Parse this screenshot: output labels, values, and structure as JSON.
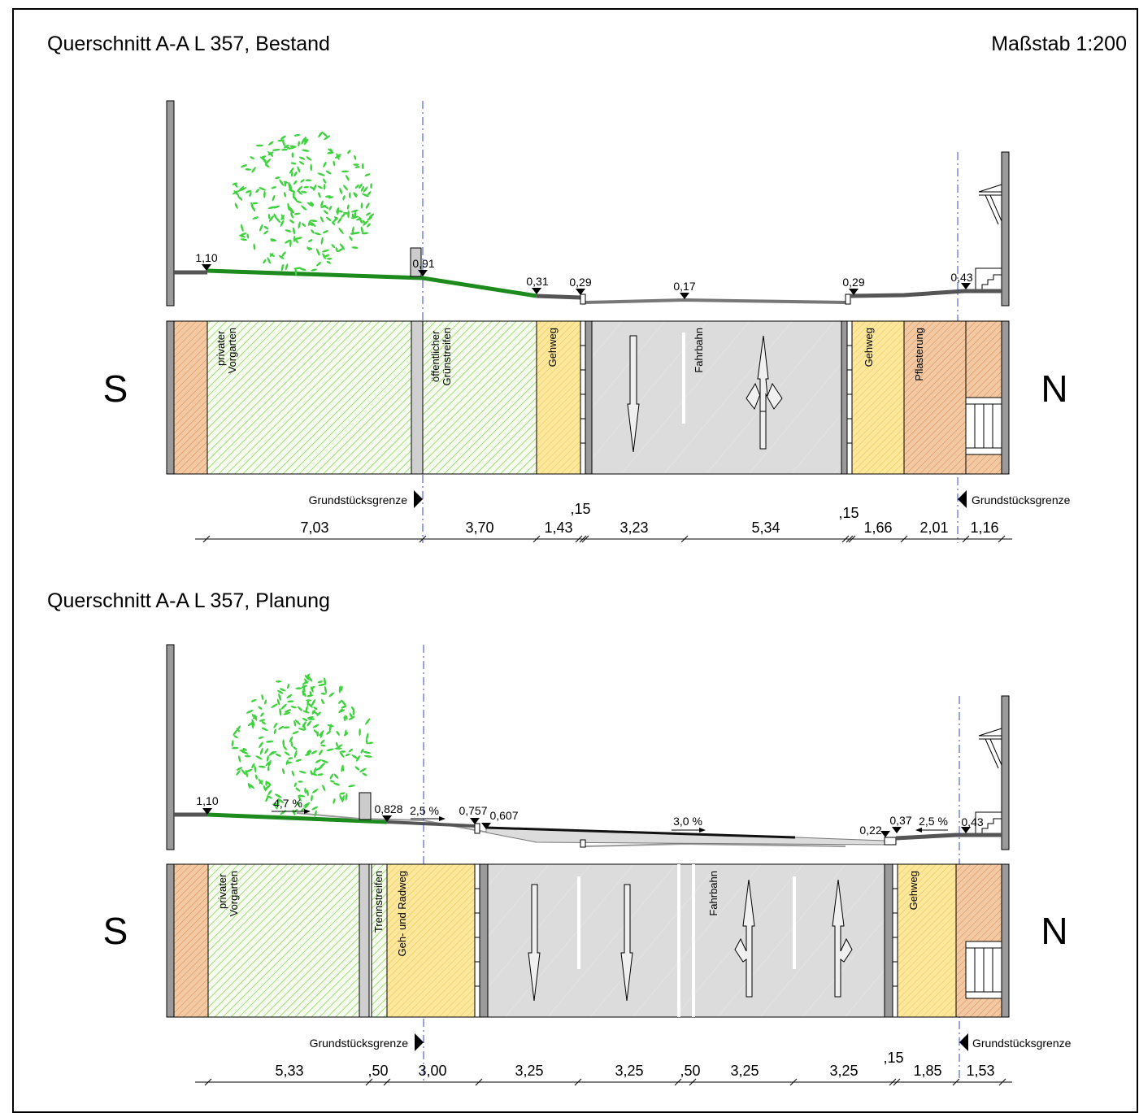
{
  "header": {
    "title_bestand": "Querschnitt A-A L 357, Bestand",
    "title_planung": "Querschnitt A-A L 357, Planung",
    "scale": "Maßstab 1:200"
  },
  "compass": {
    "south": "S",
    "north": "N"
  },
  "boundary_label": "Grundstücksgrenze",
  "bestand": {
    "heights": [
      "1,10",
      "0,91",
      "0,31",
      "0,29",
      "0,17",
      "0,29",
      "0,43"
    ],
    "zones": [
      "privater Vorgarten",
      "öffentlicher Grünstreifen",
      "Gehweg",
      "Fahrbahn",
      "Gehweg",
      "Pflasterung"
    ],
    "dims": [
      "7,03",
      "3,70",
      "1,43",
      ",15",
      "3,23",
      "5,34",
      ",15",
      "1,66",
      "2,01",
      "1,16"
    ]
  },
  "planung": {
    "heights": [
      "1,10",
      "0,828",
      "0,757",
      "0,607",
      "0,22",
      "0,37",
      "0,43"
    ],
    "slopes": [
      "4,7 %",
      "2,5 %",
      "3,0 %",
      "2,5 %"
    ],
    "zones": [
      "privater Vorgarten",
      "Trennstreifen",
      "Geh- und Radweg",
      "Fahrbahn",
      "Gehweg"
    ],
    "dims": [
      "5,33",
      ",50",
      "3,00",
      "3,25",
      "3,25",
      ",50",
      "3,25",
      "3,25",
      ",15",
      "1,85",
      "1,53"
    ]
  },
  "colors": {
    "green_hatch": "#8fd35a",
    "yellow_fill": "#fce79a",
    "orange_fill": "#f3c9a3",
    "road_gray": "#dcdcdc",
    "grass_line": "#1c8a1c",
    "tree_leaf": "#3ed23e",
    "axis_blue": "#3344cc"
  }
}
